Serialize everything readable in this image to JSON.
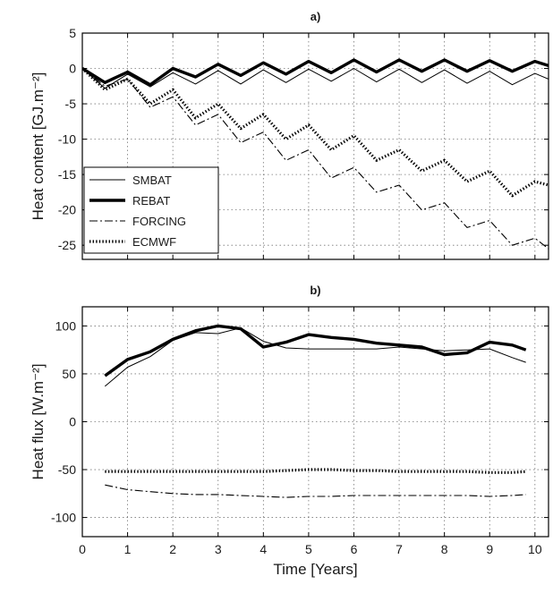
{
  "chart_data": [
    {
      "type": "line",
      "title": "a)",
      "xlabel": "",
      "ylabel": "Heat content [GJ.m⁻²]",
      "xlim": [
        0,
        10.3
      ],
      "ylim": [
        -27,
        5
      ],
      "xticks": [
        0,
        1,
        2,
        3,
        4,
        5,
        6,
        7,
        8,
        9,
        10
      ],
      "yticks": [
        5,
        0,
        -5,
        -10,
        -15,
        -20,
        -25
      ],
      "grid": true,
      "legend_position": "lower-left",
      "legend": [
        "SMBAT",
        "REBAT",
        "FORCING",
        "ECMWF"
      ],
      "series": [
        {
          "name": "SMBAT",
          "color": "#000000",
          "style": "thin-solid",
          "x": [
            0,
            0.5,
            1,
            1.5,
            2,
            2.5,
            3,
            3.5,
            4,
            4.5,
            5,
            5.5,
            6,
            6.5,
            7,
            7.5,
            8,
            8.5,
            9,
            9.5,
            10,
            10.3
          ],
          "y": [
            0,
            -2.8,
            -0.8,
            -2.6,
            -0.6,
            -2.2,
            -0.3,
            -2.2,
            -0.2,
            -2.0,
            -0.1,
            -1.8,
            0.0,
            -1.9,
            -0.1,
            -2.0,
            -0.2,
            -2.1,
            -0.4,
            -2.3,
            -0.7,
            -1.5
          ]
        },
        {
          "name": "REBAT",
          "color": "#000000",
          "style": "thick-solid",
          "x": [
            0,
            0.5,
            1,
            1.5,
            2,
            2.5,
            3,
            3.5,
            4,
            4.5,
            5,
            5.5,
            6,
            6.5,
            7,
            7.5,
            8,
            8.5,
            9,
            9.5,
            10,
            10.3
          ],
          "y": [
            0,
            -2.0,
            -0.5,
            -2.3,
            0.0,
            -1.2,
            0.6,
            -1.0,
            0.8,
            -0.8,
            1.0,
            -0.6,
            1.2,
            -0.5,
            1.2,
            -0.4,
            1.2,
            -0.4,
            1.1,
            -0.4,
            1.0,
            0.4
          ]
        },
        {
          "name": "FORCING",
          "color": "#000000",
          "style": "dash-dot",
          "x": [
            0,
            0.5,
            1,
            1.5,
            2,
            2.5,
            3,
            3.5,
            4,
            4.5,
            5,
            5.5,
            6,
            6.5,
            7,
            7.5,
            8,
            8.5,
            9,
            9.5,
            10,
            10.3
          ],
          "y": [
            0,
            -2.5,
            -1.5,
            -5.5,
            -4.0,
            -8.0,
            -6.5,
            -10.5,
            -9.0,
            -13.0,
            -11.5,
            -15.5,
            -14.0,
            -17.5,
            -16.5,
            -20.0,
            -19.0,
            -22.5,
            -21.5,
            -25.0,
            -24.0,
            -25.5
          ]
        },
        {
          "name": "ECMWF",
          "color": "#000000",
          "style": "dotted",
          "x": [
            0,
            0.5,
            1,
            1.5,
            2,
            2.5,
            3,
            3.5,
            4,
            4.5,
            5,
            5.5,
            6,
            6.5,
            7,
            7.5,
            8,
            8.5,
            9,
            9.5,
            10,
            10.3
          ],
          "y": [
            0,
            -3.0,
            -1.5,
            -5.0,
            -3.0,
            -7.0,
            -5.0,
            -8.5,
            -6.5,
            -10.0,
            -8.0,
            -11.5,
            -9.5,
            -13.0,
            -11.5,
            -14.5,
            -13.0,
            -16.0,
            -14.5,
            -18.0,
            -16.0,
            -16.5
          ]
        }
      ]
    },
    {
      "type": "line",
      "title": "b)",
      "xlabel": "Time [Years]",
      "ylabel": "Heat flux [W.m⁻²]",
      "xlim": [
        0,
        10.3
      ],
      "ylim": [
        -120,
        120
      ],
      "xticks": [
        0,
        1,
        2,
        3,
        4,
        5,
        6,
        7,
        8,
        9,
        10
      ],
      "yticks": [
        100,
        50,
        0,
        -50,
        -100
      ],
      "grid": true,
      "series": [
        {
          "name": "SMBAT",
          "color": "#000000",
          "style": "thin-solid",
          "x": [
            0.5,
            1,
            1.5,
            2,
            2.5,
            3,
            3.5,
            4,
            4.5,
            5,
            5.5,
            6,
            6.5,
            7,
            7.5,
            8,
            8.5,
            9,
            9.5,
            9.8
          ],
          "y": [
            37,
            57,
            68,
            85,
            93,
            92,
            98,
            84,
            77,
            76,
            76,
            76,
            76,
            78,
            76,
            74,
            75,
            76,
            67,
            62
          ]
        },
        {
          "name": "REBAT",
          "color": "#000000",
          "style": "thick-solid",
          "x": [
            0.5,
            1,
            1.5,
            2,
            2.5,
            3,
            3.5,
            4,
            4.5,
            5,
            5.5,
            6,
            6.5,
            7,
            7.5,
            8,
            8.5,
            9,
            9.5,
            9.8
          ],
          "y": [
            48,
            65,
            73,
            86,
            95,
            100,
            97,
            78,
            83,
            91,
            88,
            86,
            82,
            80,
            78,
            70,
            72,
            83,
            80,
            75
          ]
        },
        {
          "name": "FORCING",
          "color": "#000000",
          "style": "dash-dot",
          "x": [
            0.5,
            1,
            1.5,
            2,
            2.5,
            3,
            3.5,
            4,
            4.5,
            5,
            5.5,
            6,
            6.5,
            7,
            7.5,
            8,
            8.5,
            9,
            9.5,
            9.8
          ],
          "y": [
            -66,
            -71,
            -73,
            -75,
            -76,
            -76,
            -77,
            -78,
            -79,
            -78,
            -78,
            -77,
            -77,
            -77,
            -77,
            -77,
            -77,
            -78,
            -77,
            -76
          ]
        },
        {
          "name": "ECMWF",
          "color": "#000000",
          "style": "dotted",
          "x": [
            0.5,
            1,
            1.5,
            2,
            2.5,
            3,
            3.5,
            4,
            4.5,
            5,
            5.5,
            6,
            6.5,
            7,
            7.5,
            8,
            8.5,
            9,
            9.5,
            9.8
          ],
          "y": [
            -52,
            -52,
            -52,
            -52,
            -52,
            -52,
            -52,
            -52,
            -51,
            -50,
            -50,
            -51,
            -51,
            -52,
            -52,
            -52,
            -52,
            -53,
            -53,
            -52
          ]
        }
      ]
    }
  ]
}
